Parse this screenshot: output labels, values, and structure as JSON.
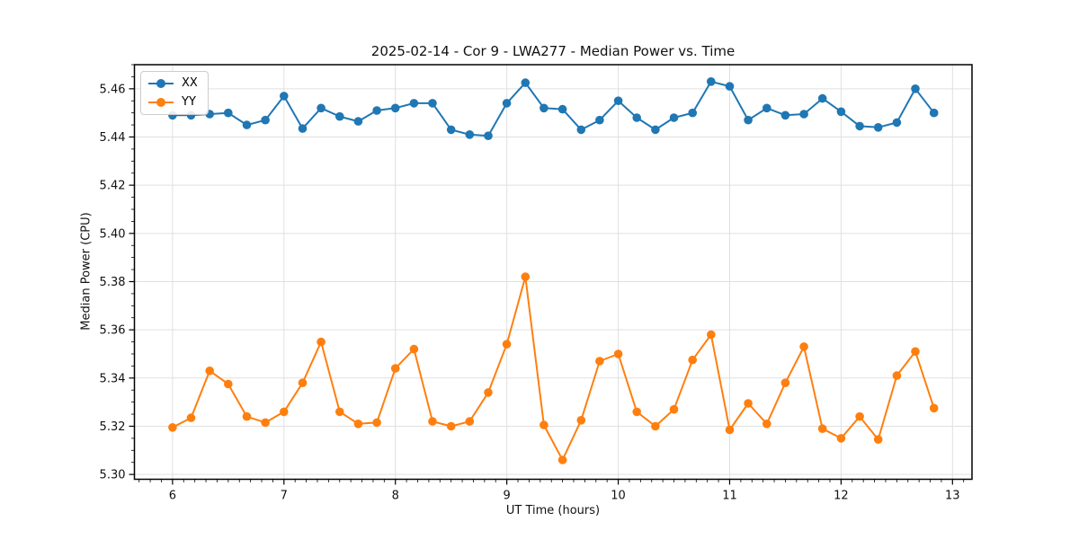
{
  "figure": {
    "background": "#ffffff"
  },
  "colors": {
    "series_xx": "#1f77b4",
    "series_yy": "#ff7f0e",
    "grid": "#e0e0e0",
    "spine": "#000000",
    "text": "#111111",
    "legend_border": "#cccccc"
  },
  "chart_data": {
    "type": "line",
    "title": "2025-02-14 - Cor 9 - LWA277 - Median Power vs. Time",
    "xlabel": "UT Time (hours)",
    "ylabel": "Median Power (CPU)",
    "xlim": [
      5.658,
      13.175
    ],
    "ylim": [
      5.298,
      5.47
    ],
    "xticks": [
      6,
      7,
      8,
      9,
      10,
      11,
      12,
      13
    ],
    "yticks": [
      5.3,
      5.32,
      5.34,
      5.36,
      5.38,
      5.4,
      5.42,
      5.44,
      5.46
    ],
    "x_minor_step": 0.1,
    "y_minor_step": 0.005,
    "grid": true,
    "legend_position": "upper left",
    "marker": "circle",
    "x": [
      6.0,
      6.1667,
      6.3333,
      6.5,
      6.6667,
      6.8333,
      7.0,
      7.1667,
      7.3333,
      7.5,
      7.6667,
      7.8333,
      8.0,
      8.1667,
      8.3333,
      8.5,
      8.6667,
      8.8333,
      9.0,
      9.1667,
      9.3333,
      9.5,
      9.6667,
      9.8333,
      10.0,
      10.1667,
      10.3333,
      10.5,
      10.6667,
      10.8333,
      11.0,
      11.1667,
      11.3333,
      11.5,
      11.6667,
      11.8333,
      12.0,
      12.1667,
      12.3333,
      12.5,
      12.6667,
      12.8333
    ],
    "series": [
      {
        "name": "XX",
        "color": "#1f77b4",
        "values": [
          5.449,
          5.449,
          5.4495,
          5.45,
          5.445,
          5.447,
          5.457,
          5.4435,
          5.452,
          5.4485,
          5.4465,
          5.451,
          5.452,
          5.454,
          5.454,
          5.443,
          5.441,
          5.4405,
          5.454,
          5.4625,
          5.452,
          5.4515,
          5.443,
          5.447,
          5.455,
          5.448,
          5.443,
          5.448,
          5.45,
          5.463,
          5.461,
          5.447,
          5.452,
          5.449,
          5.4495,
          5.456,
          5.4505,
          5.4445,
          5.444,
          5.446,
          5.46,
          5.45
        ]
      },
      {
        "name": "YY",
        "color": "#ff7f0e",
        "values": [
          5.3195,
          5.3235,
          5.343,
          5.3375,
          5.324,
          5.3215,
          5.326,
          5.338,
          5.355,
          5.326,
          5.321,
          5.3215,
          5.344,
          5.352,
          5.322,
          5.32,
          5.322,
          5.334,
          5.354,
          5.382,
          5.3205,
          5.306,
          5.3225,
          5.347,
          5.35,
          5.326,
          5.32,
          5.327,
          5.3475,
          5.358,
          5.3185,
          5.3295,
          5.321,
          5.338,
          5.353,
          5.319,
          5.315,
          5.324,
          5.3145,
          5.341,
          5.351,
          5.3275
        ]
      }
    ]
  }
}
